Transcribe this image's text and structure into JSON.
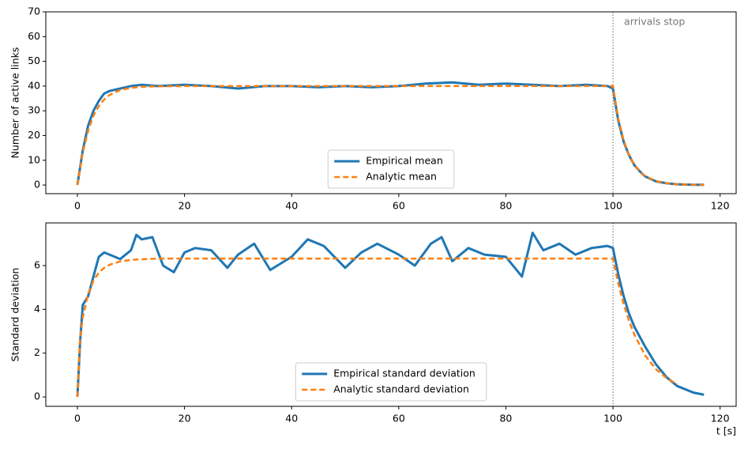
{
  "chart_data": [
    {
      "type": "line",
      "ylabel": "Number of active links",
      "annotation": "arrivals stop",
      "vline": 100,
      "legend": "lower center",
      "xlim": [
        -5.9,
        123
      ],
      "ylim": [
        -3.5,
        70
      ],
      "xticks": [
        0,
        20,
        40,
        60,
        80,
        100,
        120
      ],
      "yticks": [
        0,
        10,
        20,
        30,
        40,
        50,
        60,
        70
      ],
      "x": [
        0,
        1,
        2,
        3,
        4,
        5,
        6,
        8,
        10,
        12,
        15,
        20,
        25,
        30,
        35,
        40,
        45,
        50,
        55,
        60,
        65,
        70,
        75,
        80,
        85,
        90,
        95,
        99,
        100,
        101,
        102,
        103,
        104,
        105,
        106,
        108,
        110,
        112,
        115,
        117
      ],
      "series": [
        {
          "name": "Empirical mean",
          "color": "#1f77b4",
          "dashed": false,
          "values": [
            0,
            14,
            24,
            30,
            34,
            37,
            38,
            39,
            40,
            40.5,
            40,
            40.5,
            40,
            39,
            40,
            40,
            39.5,
            40,
            39.5,
            40,
            41,
            41.5,
            40.5,
            41,
            40.5,
            40,
            40.5,
            40,
            39,
            26,
            17.5,
            12,
            8,
            5.5,
            3.5,
            1.5,
            0.7,
            0.3,
            0.1,
            0.1
          ]
        },
        {
          "name": "Analytic mean",
          "color": "#ff7f0e",
          "dashed": true,
          "values": [
            0,
            13.2,
            22,
            28,
            31.9,
            34.6,
            36.4,
            38.4,
            39.3,
            39.7,
            39.9,
            40,
            40,
            40,
            40,
            40,
            40,
            40,
            40,
            40,
            40,
            40,
            40,
            40,
            40,
            40,
            40,
            40,
            40,
            26.8,
            18,
            12,
            8.1,
            5.4,
            3.6,
            1.6,
            0.7,
            0.3,
            0.1,
            0
          ]
        }
      ]
    },
    {
      "type": "line",
      "ylabel": "Standard deviation",
      "xlabel": "t [s]",
      "vline": 100,
      "legend": "lower center",
      "xlim": [
        -5.9,
        123
      ],
      "ylim": [
        -0.43,
        7.95
      ],
      "xticks": [
        0,
        20,
        40,
        60,
        80,
        100,
        120
      ],
      "yticks": [
        0,
        2,
        4,
        6
      ],
      "x": [
        0,
        0.5,
        1,
        2,
        3,
        4,
        5,
        6,
        8,
        10,
        11,
        12,
        14,
        16,
        18,
        20,
        22,
        25,
        28,
        30,
        33,
        36,
        40,
        43,
        46,
        50,
        53,
        56,
        60,
        63,
        66,
        68,
        70,
        73,
        76,
        80,
        83,
        85,
        87,
        90,
        93,
        96,
        99,
        100,
        101,
        102,
        103,
        104,
        106,
        108,
        110,
        112,
        115,
        117
      ],
      "series": [
        {
          "name": "Empirical standard deviation",
          "color": "#1f77b4",
          "dashed": false,
          "values": [
            0,
            2.5,
            4.2,
            4.6,
            5.5,
            6.4,
            6.6,
            6.5,
            6.3,
            6.7,
            7.4,
            7.2,
            7.3,
            6.0,
            5.7,
            6.6,
            6.8,
            6.7,
            5.9,
            6.5,
            7.0,
            5.8,
            6.4,
            7.2,
            6.9,
            5.9,
            6.6,
            7.0,
            6.5,
            6.0,
            7.0,
            7.3,
            6.2,
            6.8,
            6.5,
            6.4,
            5.5,
            7.5,
            6.7,
            7.0,
            6.5,
            6.8,
            6.9,
            6.8,
            5.6,
            4.6,
            3.8,
            3.2,
            2.3,
            1.5,
            0.9,
            0.5,
            0.2,
            0.1
          ]
        },
        {
          "name": "Analytic standard deviation",
          "color": "#ff7f0e",
          "dashed": true,
          "values": [
            0,
            2.69,
            3.63,
            4.71,
            5.31,
            5.68,
            5.9,
            6.04,
            6.19,
            6.26,
            6.28,
            6.29,
            6.31,
            6.32,
            6.32,
            6.32,
            6.32,
            6.32,
            6.32,
            6.32,
            6.32,
            6.32,
            6.32,
            6.32,
            6.32,
            6.32,
            6.32,
            6.32,
            6.32,
            6.32,
            6.32,
            6.32,
            6.32,
            6.32,
            6.32,
            6.32,
            6.32,
            6.32,
            6.32,
            6.32,
            6.32,
            6.32,
            6.32,
            6.32,
            5.18,
            4.24,
            3.47,
            2.84,
            1.9,
            1.27,
            0.86,
            0.57,
            null,
            null
          ]
        }
      ]
    }
  ]
}
